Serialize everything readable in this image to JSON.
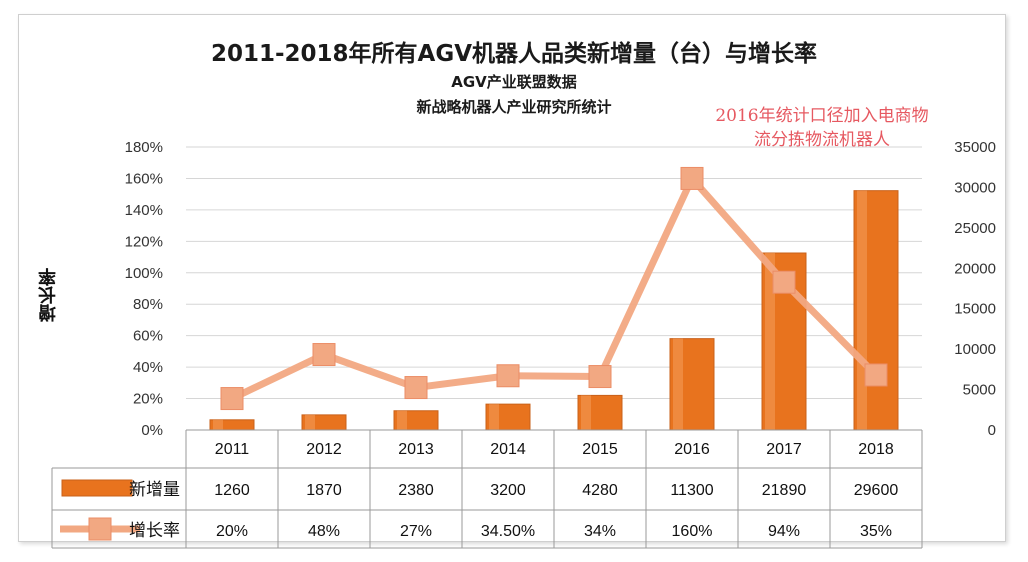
{
  "chart_data": {
    "type": "bar",
    "title": "2011-2018年所有AGV机器人品类新增量（台）与增长率",
    "subtitle_lines": [
      "AGV产业联盟数据",
      "新战略机器人产业研究所统计"
    ],
    "annotation": "2016年统计口径加入电商物流分拣物流机器人",
    "ylabel": "增长率",
    "categories": [
      "2011",
      "2012",
      "2013",
      "2014",
      "2015",
      "2016",
      "2017",
      "2018"
    ],
    "left_axis_ticks": [
      "180%",
      "160%",
      "140%",
      "120%",
      "100%",
      "80%",
      "60%",
      "40%",
      "20%",
      "0%"
    ],
    "right_axis_ticks": [
      "35000",
      "30000",
      "25000",
      "20000",
      "15000",
      "10000",
      "5000",
      "0"
    ],
    "left_ylim": [
      0,
      180
    ],
    "right_ylim": [
      0,
      35000
    ],
    "grid": true,
    "series": [
      {
        "name": "新增量",
        "axis": "right",
        "kind": "bar",
        "color": "#e8731e",
        "values": [
          1260,
          1870,
          2380,
          3200,
          4280,
          11300,
          21890,
          29600
        ],
        "labels": [
          "1260",
          "1870",
          "2380",
          "3200",
          "4280",
          "11300",
          "21890",
          "29600"
        ]
      },
      {
        "name": "增长率",
        "axis": "left",
        "kind": "line",
        "color": "#f2a882",
        "values": [
          20,
          48,
          27,
          34.5,
          34,
          160,
          94,
          35
        ],
        "labels": [
          "20%",
          "48%",
          "27%",
          "34.50%",
          "34%",
          "160%",
          "94%",
          "35%"
        ]
      }
    ]
  }
}
